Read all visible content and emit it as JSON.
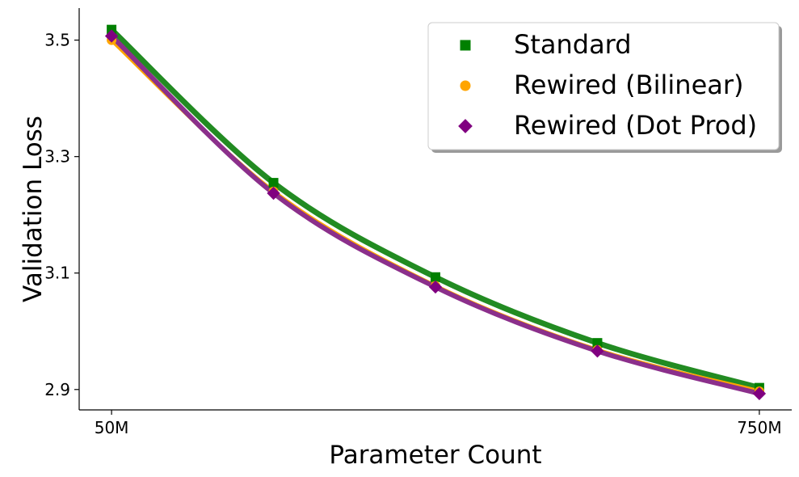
{
  "chart_data": {
    "type": "line",
    "xlabel": "Parameter Count",
    "ylabel": "Validation Loss",
    "x": [
      50,
      225,
      400,
      575,
      750
    ],
    "x_ticks": [
      {
        "value": 50,
        "label": "50M"
      },
      {
        "value": 750,
        "label": "750M"
      }
    ],
    "y_ticks": [
      {
        "value": 2.9,
        "label": "2.9"
      },
      {
        "value": 3.1,
        "label": "3.1"
      },
      {
        "value": 3.3,
        "label": "3.3"
      },
      {
        "value": 3.5,
        "label": "3.5"
      }
    ],
    "xlim": [
      15,
      785
    ],
    "ylim": [
      2.865,
      3.555
    ],
    "grid": false,
    "legend_position": "top-right",
    "series": [
      {
        "name": "Standard",
        "color": "#228b22",
        "marker_color": "#008000",
        "marker": "square",
        "values": [
          3.518,
          3.255,
          3.093,
          2.98,
          2.903
        ]
      },
      {
        "name": "Rewired (Bilinear)",
        "color": "#ffa500",
        "marker_color": "#ffa500",
        "marker": "circle",
        "values": [
          3.5,
          3.24,
          3.078,
          2.968,
          2.897
        ]
      },
      {
        "name": "Rewired (Dot Prod)",
        "color": "#8b2f8b",
        "marker_color": "#800080",
        "marker": "diamond",
        "values": [
          3.507,
          3.237,
          3.076,
          2.966,
          2.893
        ]
      }
    ]
  }
}
